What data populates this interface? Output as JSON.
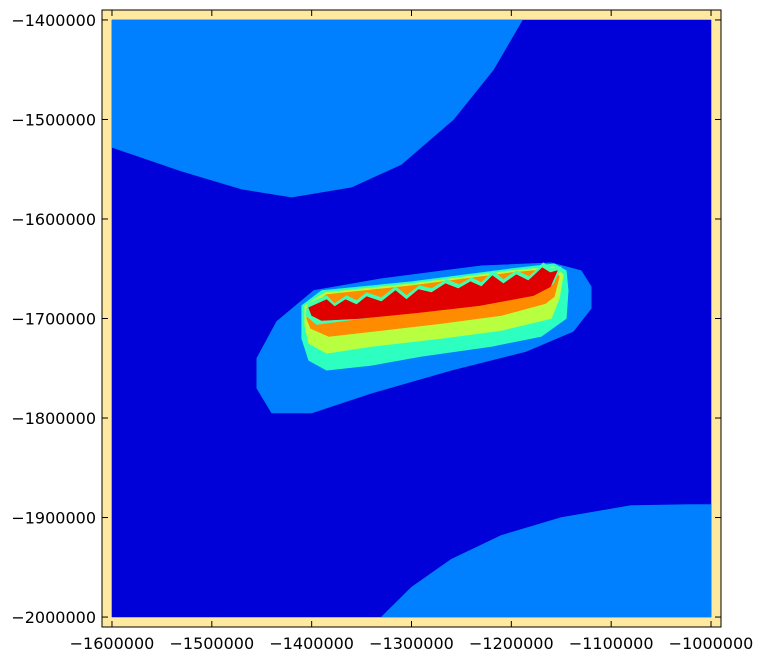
{
  "chart_data": {
    "type": "contour",
    "title": "",
    "xlabel": "",
    "ylabel": "",
    "xlim": [
      -1610000,
      -990000
    ],
    "ylim": [
      -2010000,
      -1390000
    ],
    "background_color": "#ffe9a0",
    "data_extent": {
      "x": [
        -1600000,
        -1000000
      ],
      "y": [
        -2000000,
        -1400000
      ]
    },
    "x_ticks": [
      {
        "value": -1600000,
        "label": "−1600000"
      },
      {
        "value": -1500000,
        "label": "−1500000"
      },
      {
        "value": -1400000,
        "label": "−1400000"
      },
      {
        "value": -1300000,
        "label": "−1300000"
      },
      {
        "value": -1200000,
        "label": "−1200000"
      },
      {
        "value": -1100000,
        "label": "−1100000"
      },
      {
        "value": -1000000,
        "label": "−1000000"
      }
    ],
    "y_ticks": [
      {
        "value": -1400000,
        "label": "−1400000"
      },
      {
        "value": -1500000,
        "label": "−1500000"
      },
      {
        "value": -1600000,
        "label": "−1600000"
      },
      {
        "value": -1700000,
        "label": "−1700000"
      },
      {
        "value": -1800000,
        "label": "−1800000"
      },
      {
        "value": -1900000,
        "label": "−1900000"
      },
      {
        "value": -2000000,
        "label": "−2000000"
      }
    ],
    "levels": [
      {
        "name": "level-0",
        "color": "#0000d8",
        "regions": [
          [
            [
              -1600000,
              -1400000
            ],
            [
              -1000000,
              -1400000
            ],
            [
              -1000000,
              -2000000
            ],
            [
              -1600000,
              -2000000
            ]
          ]
        ]
      },
      {
        "name": "level-1",
        "color": "#0080ff",
        "regions": [
          [
            [
              -1600000,
              -1400000
            ],
            [
              -1189000,
              -1400000
            ],
            [
              -1218000,
              -1450000
            ],
            [
              -1258000,
              -1500000
            ],
            [
              -1310000,
              -1545000
            ],
            [
              -1360000,
              -1568000
            ],
            [
              -1420000,
              -1578000
            ],
            [
              -1470000,
              -1570000
            ],
            [
              -1530000,
              -1552000
            ],
            [
              -1600000,
              -1528000
            ]
          ],
          [
            [
              -1330000,
              -2000000
            ],
            [
              -1300000,
              -1970000
            ],
            [
              -1260000,
              -1942000
            ],
            [
              -1210000,
              -1918000
            ],
            [
              -1150000,
              -1900000
            ],
            [
              -1080000,
              -1888000
            ],
            [
              -1020000,
              -1887000
            ],
            [
              -1000000,
              -1887000
            ],
            [
              -1000000,
              -2000000
            ]
          ],
          [
            [
              -1435000,
              -1703000
            ],
            [
              -1398000,
              -1672000
            ],
            [
              -1330000,
              -1660000
            ],
            [
              -1230000,
              -1647000
            ],
            [
              -1160000,
              -1644000
            ],
            [
              -1130000,
              -1652000
            ],
            [
              -1120000,
              -1668000
            ],
            [
              -1120000,
              -1690000
            ],
            [
              -1138000,
              -1713000
            ],
            [
              -1185000,
              -1733000
            ],
            [
              -1260000,
              -1752000
            ],
            [
              -1340000,
              -1775000
            ],
            [
              -1400000,
              -1795000
            ],
            [
              -1440000,
              -1795000
            ],
            [
              -1455000,
              -1770000
            ],
            [
              -1455000,
              -1740000
            ]
          ]
        ]
      },
      {
        "name": "level-2",
        "color": "#2dffc0",
        "regions": [
          [
            [
              -1410000,
              -1687000
            ],
            [
              -1390000,
              -1672000
            ],
            [
              -1300000,
              -1663000
            ],
            [
              -1200000,
              -1650000
            ],
            [
              -1157000,
              -1645000
            ],
            [
              -1145000,
              -1652000
            ],
            [
              -1143000,
              -1672000
            ],
            [
              -1145000,
              -1700000
            ],
            [
              -1170000,
              -1718000
            ],
            [
              -1220000,
              -1728000
            ],
            [
              -1290000,
              -1738000
            ],
            [
              -1340000,
              -1747000
            ],
            [
              -1385000,
              -1752000
            ],
            [
              -1403000,
              -1742000
            ],
            [
              -1410000,
              -1720000
            ]
          ]
        ]
      },
      {
        "name": "level-3",
        "color": "#b8ff40",
        "regions": [
          [
            [
              -1407000,
              -1687000
            ],
            [
              -1387000,
              -1674000
            ],
            [
              -1300000,
              -1665000
            ],
            [
              -1200000,
              -1652000
            ],
            [
              -1157000,
              -1648000
            ],
            [
              -1148000,
              -1656000
            ],
            [
              -1152000,
              -1680000
            ],
            [
              -1160000,
              -1700000
            ],
            [
              -1210000,
              -1712000
            ],
            [
              -1270000,
              -1720000
            ],
            [
              -1340000,
              -1728000
            ],
            [
              -1385000,
              -1735000
            ],
            [
              -1403000,
              -1725000
            ],
            [
              -1407000,
              -1707000
            ]
          ]
        ]
      },
      {
        "name": "level-4",
        "color": "#ff8c00",
        "regions": [
          [
            [
              -1405000,
              -1690000
            ],
            [
              -1385000,
              -1676000
            ],
            [
              -1300000,
              -1667000
            ],
            [
              -1200000,
              -1654000
            ],
            [
              -1157000,
              -1650000
            ],
            [
              -1152000,
              -1658000
            ],
            [
              -1157000,
              -1678000
            ],
            [
              -1166000,
              -1685000
            ],
            [
              -1210000,
              -1697000
            ],
            [
              -1270000,
              -1705000
            ],
            [
              -1330000,
              -1712000
            ],
            [
              -1383000,
              -1718000
            ],
            [
              -1401000,
              -1710000
            ],
            [
              -1405000,
              -1700000
            ]
          ]
        ]
      },
      {
        "name": "level-5",
        "color": "#40ffb0",
        "regions": [
          [
            [
              -1404000,
              -1685000
            ],
            [
              -1395000,
              -1681000
            ],
            [
              -1385000,
              -1677000
            ],
            [
              -1377000,
              -1685000
            ],
            [
              -1365000,
              -1677000
            ],
            [
              -1355000,
              -1682000
            ],
            [
              -1345000,
              -1674000
            ],
            [
              -1330000,
              -1679000
            ],
            [
              -1316000,
              -1668000
            ],
            [
              -1305000,
              -1677000
            ],
            [
              -1292000,
              -1667000
            ],
            [
              -1280000,
              -1670000
            ],
            [
              -1265000,
              -1661000
            ],
            [
              -1252000,
              -1666000
            ],
            [
              -1240000,
              -1659000
            ],
            [
              -1230000,
              -1664000
            ],
            [
              -1218000,
              -1652000
            ],
            [
              -1208000,
              -1661000
            ],
            [
              -1195000,
              -1652000
            ],
            [
              -1182000,
              -1658000
            ],
            [
              -1168000,
              -1644000
            ],
            [
              -1160000,
              -1650000
            ],
            [
              -1150000,
              -1648000
            ],
            [
              -1158000,
              -1665000
            ],
            [
              -1175000,
              -1675000
            ],
            [
              -1230000,
              -1685000
            ],
            [
              -1290000,
              -1693000
            ],
            [
              -1350000,
              -1700000
            ],
            [
              -1395000,
              -1706000
            ],
            [
              -1406000,
              -1697000
            ]
          ]
        ]
      },
      {
        "name": "level-6",
        "color": "#e00000",
        "regions": [
          [
            [
              -1403000,
              -1689000
            ],
            [
              -1394000,
              -1685000
            ],
            [
              -1385000,
              -1681000
            ],
            [
              -1377000,
              -1688000
            ],
            [
              -1366000,
              -1681000
            ],
            [
              -1355000,
              -1686000
            ],
            [
              -1345000,
              -1678000
            ],
            [
              -1330000,
              -1683000
            ],
            [
              -1316000,
              -1672000
            ],
            [
              -1305000,
              -1681000
            ],
            [
              -1293000,
              -1671000
            ],
            [
              -1280000,
              -1674000
            ],
            [
              -1266000,
              -1665000
            ],
            [
              -1253000,
              -1670000
            ],
            [
              -1241000,
              -1663000
            ],
            [
              -1230000,
              -1668000
            ],
            [
              -1219000,
              -1657000
            ],
            [
              -1208000,
              -1665000
            ],
            [
              -1195000,
              -1656000
            ],
            [
              -1183000,
              -1662000
            ],
            [
              -1169000,
              -1649000
            ],
            [
              -1161000,
              -1654000
            ],
            [
              -1154000,
              -1652000
            ],
            [
              -1161000,
              -1668000
            ],
            [
              -1178000,
              -1677000
            ],
            [
              -1232000,
              -1687000
            ],
            [
              -1292000,
              -1694000
            ],
            [
              -1352000,
              -1700000
            ],
            [
              -1390000,
              -1702000
            ],
            [
              -1400000,
              -1697000
            ]
          ]
        ]
      }
    ]
  }
}
